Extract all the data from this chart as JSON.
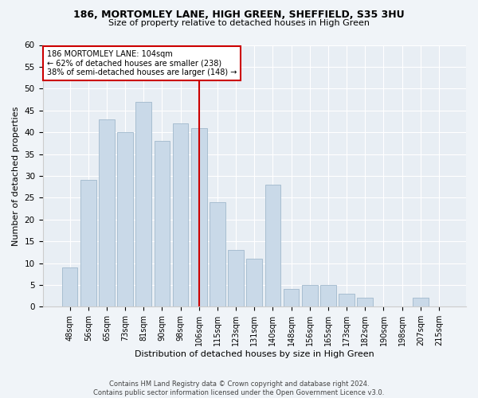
{
  "title1": "186, MORTOMLEY LANE, HIGH GREEN, SHEFFIELD, S35 3HU",
  "title2": "Size of property relative to detached houses in High Green",
  "xlabel": "Distribution of detached houses by size in High Green",
  "ylabel": "Number of detached properties",
  "bar_labels": [
    "48sqm",
    "56sqm",
    "65sqm",
    "73sqm",
    "81sqm",
    "90sqm",
    "98sqm",
    "106sqm",
    "115sqm",
    "123sqm",
    "131sqm",
    "140sqm",
    "148sqm",
    "156sqm",
    "165sqm",
    "173sqm",
    "182sqm",
    "190sqm",
    "198sqm",
    "207sqm",
    "215sqm"
  ],
  "bar_values": [
    9,
    29,
    43,
    40,
    47,
    38,
    42,
    41,
    24,
    13,
    11,
    28,
    4,
    5,
    5,
    3,
    2,
    0,
    0,
    2,
    0
  ],
  "bar_color": "#c9d9e8",
  "bar_edge_color": "#a0b8cc",
  "reference_line_x": 7,
  "annotation_text": "186 MORTOMLEY LANE: 104sqm\n← 62% of detached houses are smaller (238)\n38% of semi-detached houses are larger (148) →",
  "ylim": [
    0,
    60
  ],
  "yticks": [
    0,
    5,
    10,
    15,
    20,
    25,
    30,
    35,
    40,
    45,
    50,
    55,
    60
  ],
  "footer1": "Contains HM Land Registry data © Crown copyright and database right 2024.",
  "footer2": "Contains public sector information licensed under the Open Government Licence v3.0.",
  "bg_color": "#f0f4f8",
  "plot_bg_color": "#e8eef4",
  "title1_fontsize": 9,
  "title2_fontsize": 8,
  "ylabel_fontsize": 8,
  "xlabel_fontsize": 8,
  "xtick_fontsize": 7,
  "ytick_fontsize": 7.5,
  "annot_fontsize": 7,
  "footer_fontsize": 6
}
